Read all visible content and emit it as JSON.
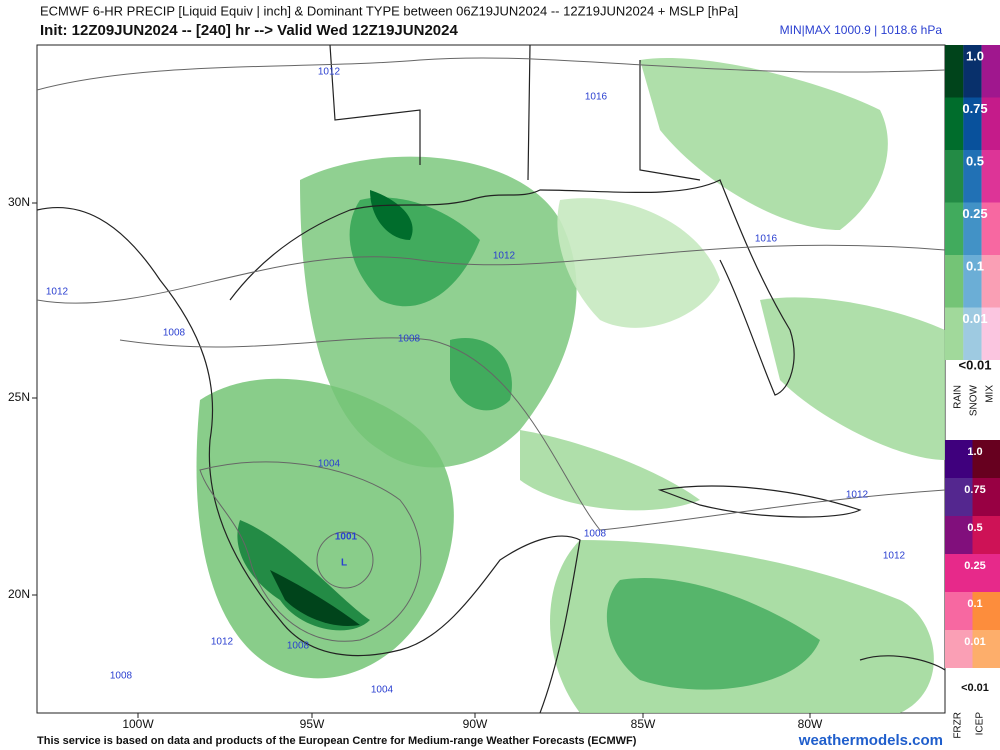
{
  "header": {
    "title": "ECMWF 6-HR PRECIP [Liquid Equiv | inch] & Dominant TYPE between 06Z19JUN2024 -- 12Z19JUN2024 + MSLP [hPa]",
    "subtitle": "Init: 12Z09JUN2024 -- [240] hr --> Valid Wed 12Z19JUN2024",
    "minmax": "MIN|MAX 1000.9 | 1018.6 hPa"
  },
  "map": {
    "lon_labels": [
      "100W",
      "95W",
      "90W",
      "85W",
      "80W"
    ],
    "lat_labels": [
      "30N",
      "25N",
      "20N"
    ],
    "isobar_labels": [
      "1012",
      "1016",
      "1016",
      "1012",
      "1012",
      "1008",
      "1008",
      "1004",
      "1001",
      "L",
      "1012",
      "1008",
      "1012",
      "1012",
      "1008",
      "1008",
      "1004"
    ]
  },
  "legend": {
    "rain_snow_mix": {
      "levels": [
        "1.0",
        "0.75",
        "0.5",
        "0.25",
        "0.1",
        "0.01"
      ],
      "below": "<0.01",
      "types": [
        "RAIN",
        "SNOW",
        "MIX"
      ]
    },
    "frzr_icep": {
      "levels": [
        "1.0",
        "0.75",
        "0.5",
        "0.25",
        "0.1",
        "0.01"
      ],
      "below": "<0.01",
      "types": [
        "FRZR",
        "ICEP"
      ]
    }
  },
  "footer": {
    "credit": "This service is based on data and products of the European Centre for Medium-range Weather Forecasts (ECMWF)",
    "site": "weathermodels.com"
  }
}
